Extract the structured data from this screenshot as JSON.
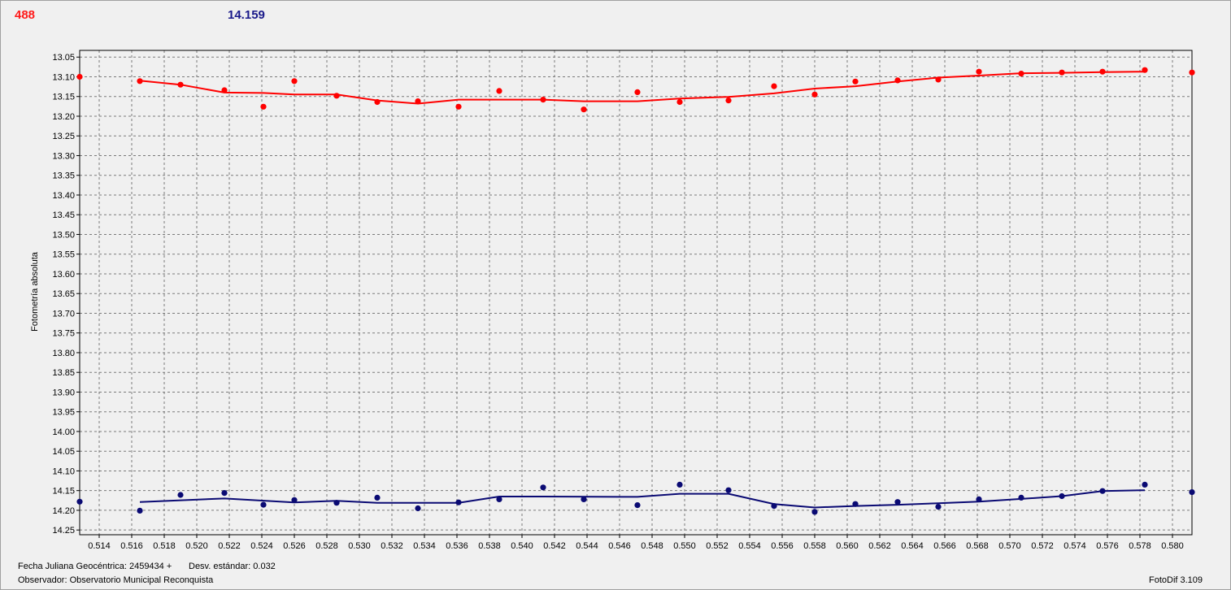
{
  "header": {
    "value_red": "488",
    "value_blue": "14.159"
  },
  "footer": {
    "date_label": "Fecha Juliana Geocéntrica: 2459434 +",
    "std_label": "Desv. estándar: 0.032",
    "observer_label": "Observador: Observatorio Municipal Reconquista",
    "version_label": "FotoDif 3.109"
  },
  "chart_data": {
    "type": "scatter",
    "ylabel": "Fotometría absoluta",
    "xlabel": "",
    "xlim": [
      0.5128,
      0.5812
    ],
    "ylim": [
      14.262,
      13.033
    ],
    "y_inverted": true,
    "grid": true,
    "x_ticks": [
      "0.514",
      "0.516",
      "0.518",
      "0.520",
      "0.522",
      "0.524",
      "0.526",
      "0.528",
      "0.530",
      "0.532",
      "0.534",
      "0.536",
      "0.538",
      "0.540",
      "0.542",
      "0.544",
      "0.546",
      "0.548",
      "0.550",
      "0.552",
      "0.554",
      "0.556",
      "0.558",
      "0.560",
      "0.562",
      "0.564",
      "0.566",
      "0.568",
      "0.570",
      "0.572",
      "0.574",
      "0.576",
      "0.578",
      "0.580"
    ],
    "y_ticks": [
      "13.05",
      "13.10",
      "13.15",
      "13.20",
      "13.25",
      "13.30",
      "13.35",
      "13.40",
      "13.45",
      "13.50",
      "13.55",
      "13.60",
      "13.65",
      "13.70",
      "13.75",
      "13.80",
      "13.85",
      "13.90",
      "13.95",
      "14.00",
      "14.05",
      "14.10",
      "14.15",
      "14.20",
      "14.25"
    ],
    "series": [
      {
        "color": "#ff0000",
        "points": [
          [
            0.5128,
            13.1
          ],
          [
            0.5165,
            13.111
          ],
          [
            0.519,
            13.12
          ],
          [
            0.5217,
            13.134
          ],
          [
            0.5241,
            13.176
          ],
          [
            0.526,
            13.111
          ],
          [
            0.5286,
            13.148
          ],
          [
            0.5311,
            13.164
          ],
          [
            0.5336,
            13.162
          ],
          [
            0.5361,
            13.176
          ],
          [
            0.5386,
            13.136
          ],
          [
            0.5413,
            13.158
          ],
          [
            0.5438,
            13.183
          ],
          [
            0.5471,
            13.139
          ],
          [
            0.5497,
            13.164
          ],
          [
            0.5527,
            13.16
          ],
          [
            0.5555,
            13.124
          ],
          [
            0.558,
            13.145
          ],
          [
            0.5605,
            13.112
          ],
          [
            0.5631,
            13.109
          ],
          [
            0.5656,
            13.107
          ],
          [
            0.5681,
            13.087
          ],
          [
            0.5707,
            13.092
          ],
          [
            0.5732,
            13.089
          ],
          [
            0.5757,
            13.087
          ],
          [
            0.5783,
            13.083
          ],
          [
            0.5812,
            13.089
          ]
        ],
        "fit": [
          [
            0.5165,
            13.11
          ],
          [
            0.519,
            13.12
          ],
          [
            0.5217,
            13.14
          ],
          [
            0.5241,
            13.141
          ],
          [
            0.526,
            13.145
          ],
          [
            0.5286,
            13.145
          ],
          [
            0.5311,
            13.16
          ],
          [
            0.5336,
            13.168
          ],
          [
            0.5361,
            13.158
          ],
          [
            0.5413,
            13.158
          ],
          [
            0.5438,
            13.162
          ],
          [
            0.5471,
            13.162
          ],
          [
            0.5497,
            13.155
          ],
          [
            0.5527,
            13.151
          ],
          [
            0.5555,
            13.142
          ],
          [
            0.558,
            13.13
          ],
          [
            0.5605,
            13.124
          ],
          [
            0.5631,
            13.112
          ],
          [
            0.5656,
            13.102
          ],
          [
            0.5681,
            13.097
          ],
          [
            0.5707,
            13.091
          ],
          [
            0.5732,
            13.09
          ],
          [
            0.5757,
            13.088
          ],
          [
            0.5783,
            13.087
          ]
        ]
      },
      {
        "color": "#0a0a73",
        "points": [
          [
            0.5128,
            14.178
          ],
          [
            0.5165,
            14.201
          ],
          [
            0.519,
            14.161
          ],
          [
            0.5217,
            14.156
          ],
          [
            0.5241,
            14.186
          ],
          [
            0.526,
            14.174
          ],
          [
            0.5286,
            14.181
          ],
          [
            0.5311,
            14.168
          ],
          [
            0.5336,
            14.195
          ],
          [
            0.5361,
            14.18
          ],
          [
            0.5386,
            14.172
          ],
          [
            0.5413,
            14.142
          ],
          [
            0.5438,
            14.172
          ],
          [
            0.5471,
            14.187
          ],
          [
            0.5497,
            14.135
          ],
          [
            0.5527,
            14.149
          ],
          [
            0.5555,
            14.189
          ],
          [
            0.558,
            14.204
          ],
          [
            0.5605,
            14.184
          ],
          [
            0.5631,
            14.179
          ],
          [
            0.5656,
            14.191
          ],
          [
            0.5681,
            14.172
          ],
          [
            0.5707,
            14.168
          ],
          [
            0.5732,
            14.164
          ],
          [
            0.5757,
            14.151
          ],
          [
            0.5783,
            14.135
          ],
          [
            0.5812,
            14.154
          ]
        ],
        "fit": [
          [
            0.5165,
            14.179
          ],
          [
            0.5217,
            14.17
          ],
          [
            0.526,
            14.18
          ],
          [
            0.5286,
            14.176
          ],
          [
            0.5311,
            14.181
          ],
          [
            0.5361,
            14.181
          ],
          [
            0.5386,
            14.165
          ],
          [
            0.5413,
            14.165
          ],
          [
            0.5471,
            14.166
          ],
          [
            0.5497,
            14.158
          ],
          [
            0.5527,
            14.158
          ],
          [
            0.5555,
            14.184
          ],
          [
            0.558,
            14.193
          ],
          [
            0.5605,
            14.189
          ],
          [
            0.5631,
            14.186
          ],
          [
            0.5656,
            14.182
          ],
          [
            0.5681,
            14.178
          ],
          [
            0.5707,
            14.171
          ],
          [
            0.5732,
            14.164
          ],
          [
            0.5757,
            14.151
          ],
          [
            0.5783,
            14.149
          ]
        ]
      }
    ]
  }
}
